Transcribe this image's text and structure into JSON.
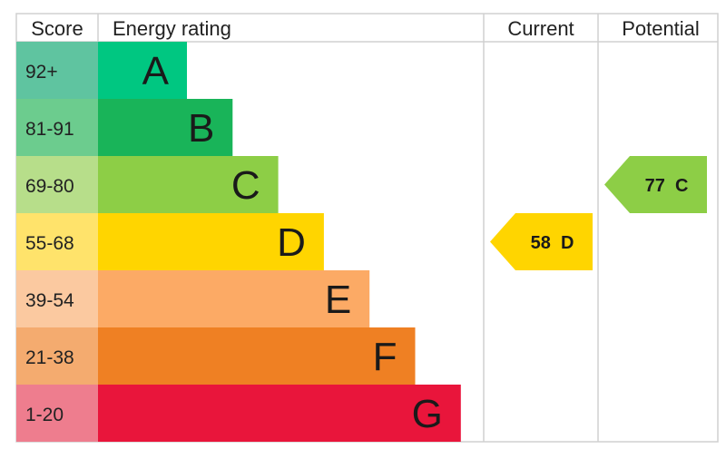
{
  "chart_data": {
    "type": "bar",
    "headers": {
      "score": "Score",
      "rating": "Energy rating",
      "current": "Current",
      "potential": "Potential"
    },
    "bands": [
      {
        "score": "92+",
        "letter": "A",
        "color": "#00c781",
        "score_bg": "#5fc4a0"
      },
      {
        "score": "81-91",
        "letter": "B",
        "color": "#19b459",
        "score_bg": "#6ccc8e"
      },
      {
        "score": "69-80",
        "letter": "C",
        "color": "#8dce46",
        "score_bg": "#b7de8a"
      },
      {
        "score": "55-68",
        "letter": "D",
        "color": "#ffd500",
        "score_bg": "#ffe36b"
      },
      {
        "score": "39-54",
        "letter": "E",
        "color": "#fcaa65",
        "score_bg": "#fbc9a0"
      },
      {
        "score": "21-38",
        "letter": "F",
        "color": "#ef8023",
        "score_bg": "#f4ab6f"
      },
      {
        "score": "1-20",
        "letter": "G",
        "color": "#e9153b",
        "score_bg": "#ee7d8e"
      }
    ],
    "current": {
      "value": 58,
      "band": "D",
      "label": "58  D",
      "color": "#ffd500"
    },
    "potential": {
      "value": 77,
      "band": "C",
      "label": "77  C",
      "color": "#8dce46"
    }
  }
}
